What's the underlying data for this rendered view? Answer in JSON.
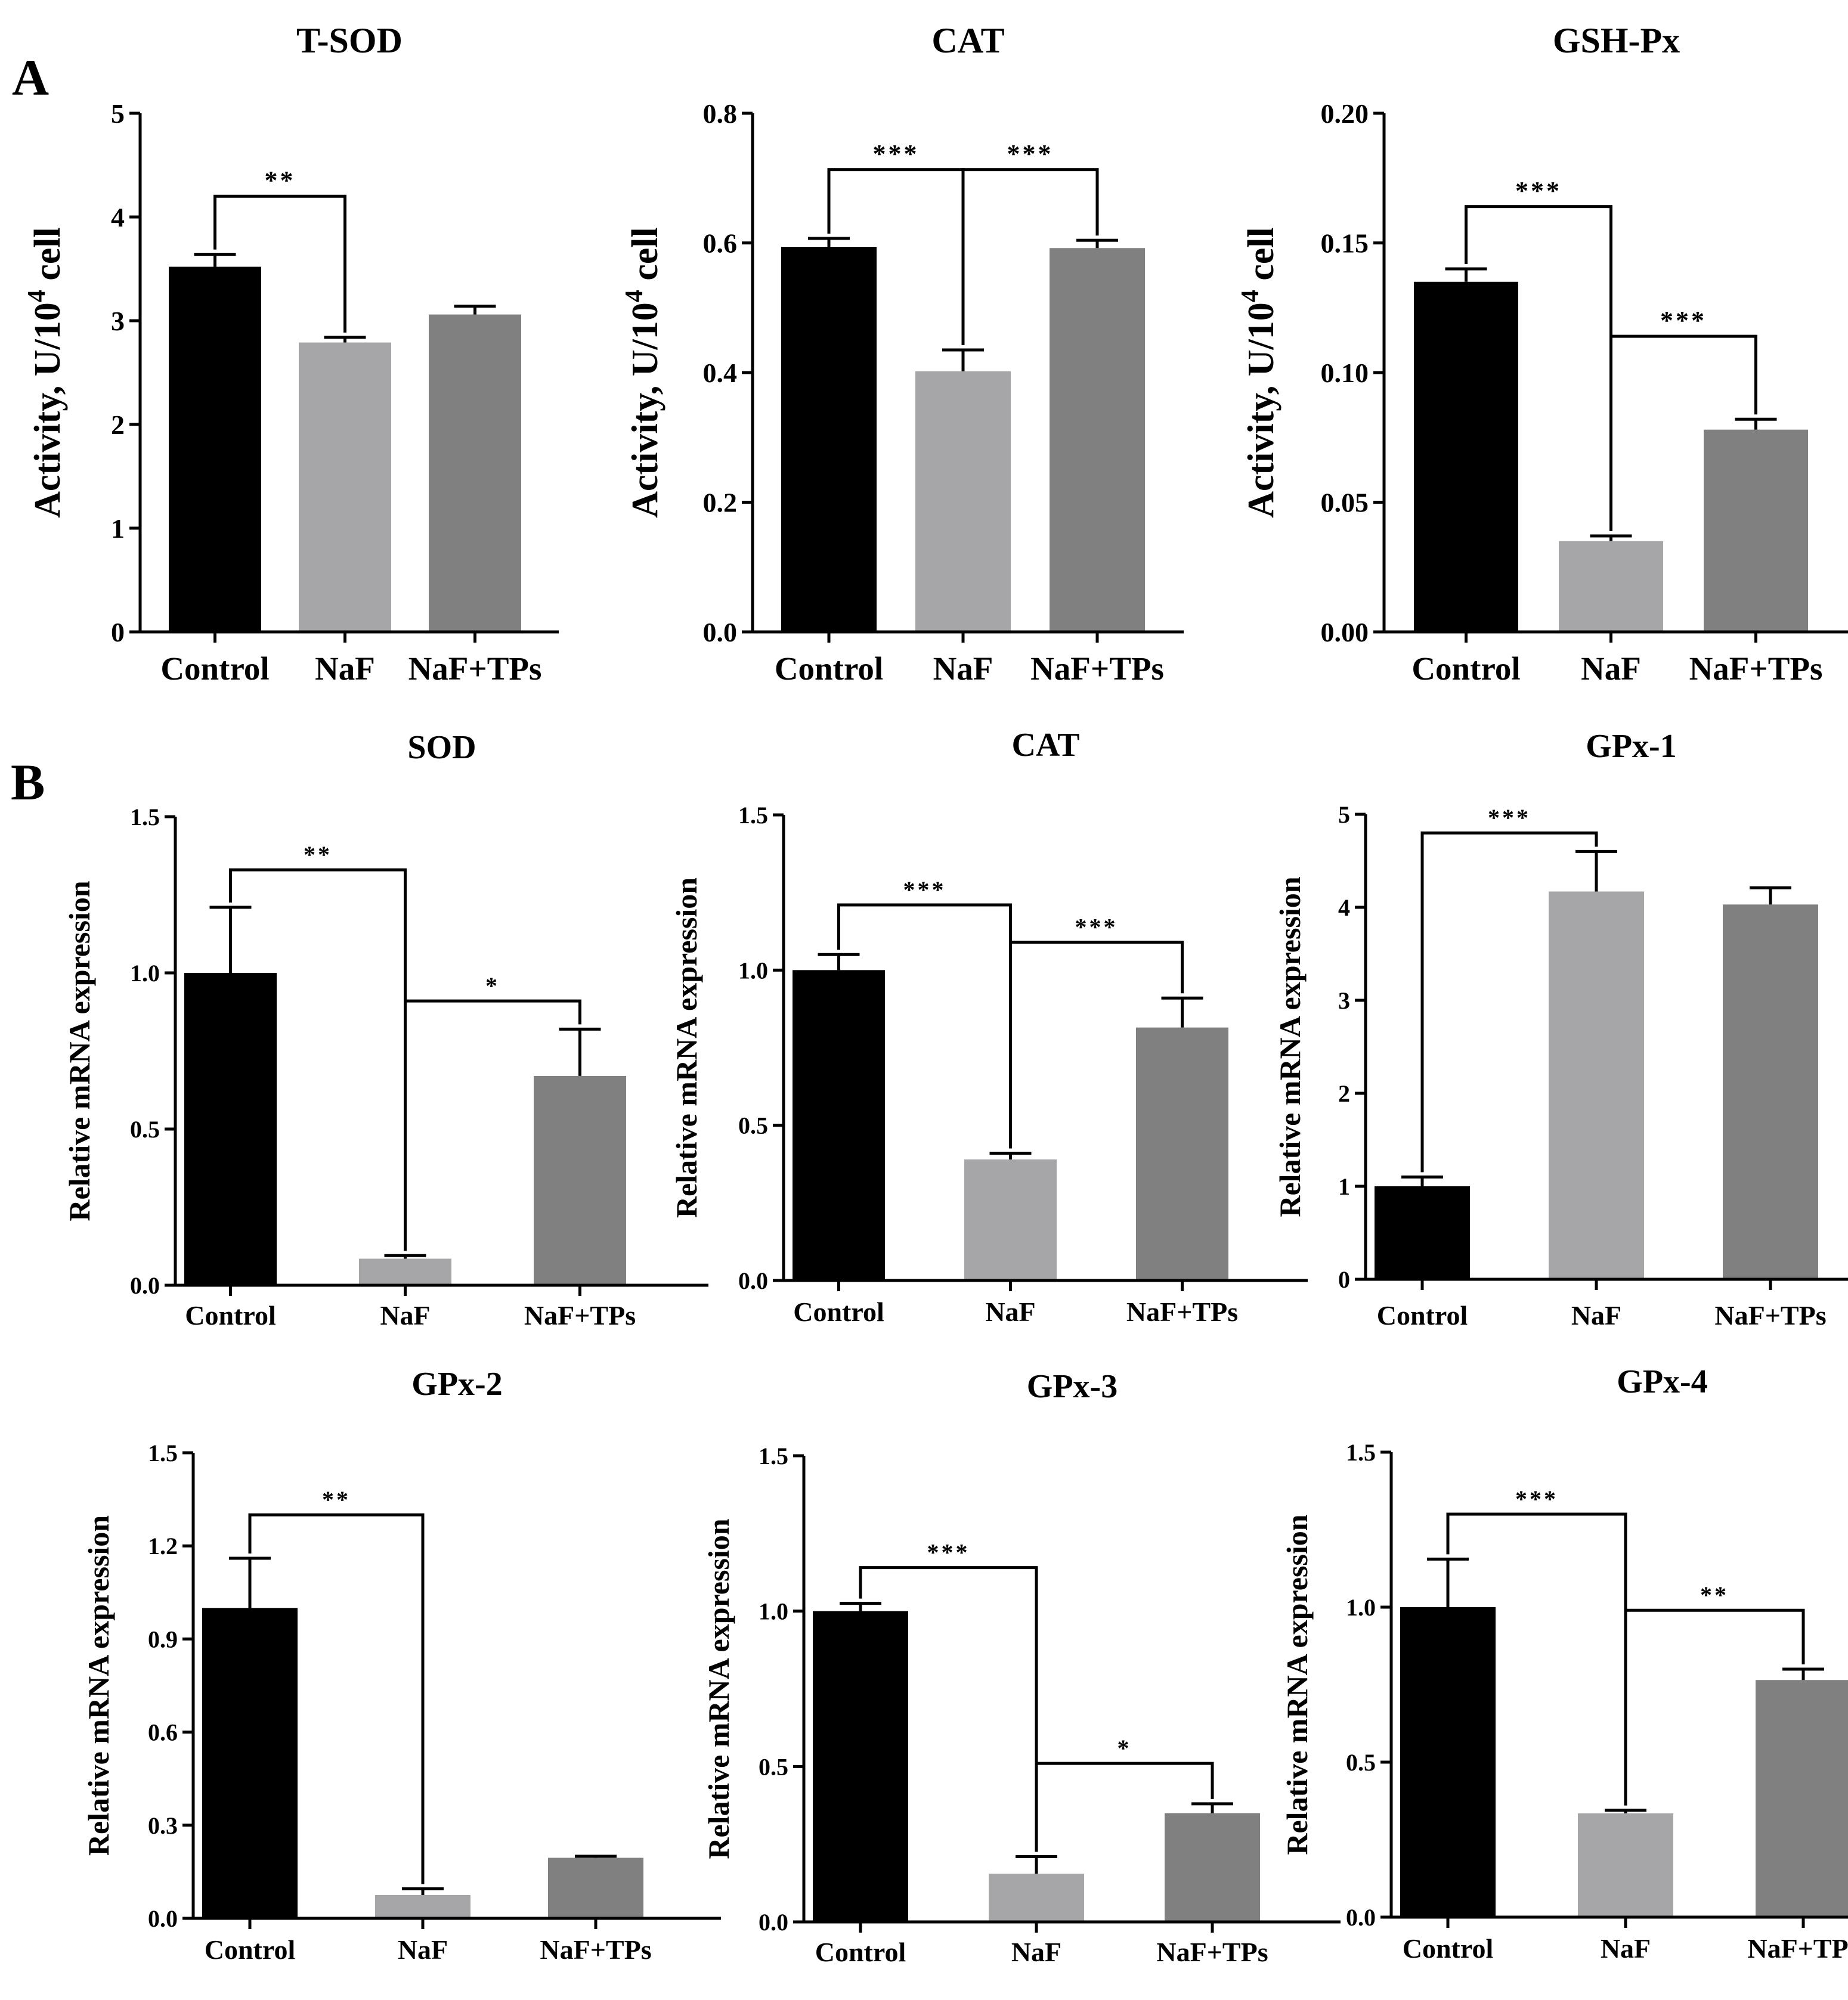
{
  "panels": [
    {
      "letter": "A"
    },
    {
      "letter": "B"
    }
  ],
  "colors": {
    "Control": "#000000",
    "NaF": "#a6a6a8",
    "NaF+TPs": "#808080",
    "axis": "#000000"
  },
  "chart_data": [
    {
      "type": "bar",
      "title": "T-SOD",
      "xlabel": "",
      "ylabel": "Activity, U/10^4 cell",
      "ylabel_parts": {
        "base": "Activity, U/10",
        "sup": "4",
        "tail": " cell"
      },
      "categories": [
        "Control",
        "NaF",
        "NaF+TPs"
      ],
      "values": [
        3.52,
        2.79,
        3.06
      ],
      "errors": [
        0.12,
        0.05,
        0.08
      ],
      "ylim": [
        0,
        5
      ],
      "ticks": [
        0,
        1,
        2,
        3,
        4,
        5
      ],
      "tick_labels": [
        "0",
        "1",
        "2",
        "3",
        "4",
        "5"
      ],
      "significance": [
        {
          "from": 0,
          "to": 1,
          "label": "**",
          "y": 4.2
        }
      ]
    },
    {
      "type": "bar",
      "title": "CAT",
      "xlabel": "",
      "ylabel": "Activity, U/10^4 cell",
      "ylabel_parts": {
        "base": "Activity, U/10",
        "sup": "4",
        "tail": " cell"
      },
      "categories": [
        "Control",
        "NaF",
        "NaF+TPs"
      ],
      "values": [
        0.594,
        0.402,
        0.592
      ],
      "errors": [
        0.013,
        0.033,
        0.012
      ],
      "ylim": [
        0,
        0.8
      ],
      "ticks": [
        0,
        0.2,
        0.4,
        0.6,
        0.8
      ],
      "tick_labels": [
        "0.0",
        "0.2",
        "0.4",
        "0.6",
        "0.8"
      ],
      "significance": [
        {
          "from": 0,
          "to": 1,
          "label": "***",
          "y": 0.713
        },
        {
          "from": 1,
          "to": 2,
          "label": "***",
          "y": 0.713
        }
      ]
    },
    {
      "type": "bar",
      "title": "GSH-Px",
      "xlabel": "",
      "ylabel": "Activity, U/10^4 cell",
      "ylabel_parts": {
        "base": "Activity, U/10",
        "sup": "4",
        "tail": " cell"
      },
      "categories": [
        "Control",
        "NaF",
        "NaF+TPs"
      ],
      "values": [
        0.135,
        0.035,
        0.078
      ],
      "errors": [
        0.005,
        0.002,
        0.004
      ],
      "ylim": [
        0,
        0.2
      ],
      "ticks": [
        0,
        0.05,
        0.1,
        0.15,
        0.2
      ],
      "tick_labels": [
        "0.00",
        "0.05",
        "0.10",
        "0.15",
        "0.20"
      ],
      "significance": [
        {
          "from": 0,
          "to": 1,
          "label": "***",
          "y": 0.164
        },
        {
          "from": 1,
          "to": 2,
          "label": "***",
          "y": 0.114
        }
      ]
    },
    {
      "type": "bar",
      "title": "SOD",
      "xlabel": "",
      "ylabel": "Relative mRNA expression",
      "categories": [
        "Control",
        "NaF",
        "NaF+TPs"
      ],
      "values": [
        1.0,
        0.085,
        0.67
      ],
      "errors": [
        0.21,
        0.01,
        0.15
      ],
      "ylim": [
        0,
        1.5
      ],
      "ticks": [
        0,
        0.5,
        1.0,
        1.5
      ],
      "tick_labels": [
        "0.0",
        "0.5",
        "1.0",
        "1.5"
      ],
      "significance": [
        {
          "from": 0,
          "to": 1,
          "label": "**",
          "y": 1.33
        },
        {
          "from": 1,
          "to": 2,
          "label": "*",
          "y": 0.91
        }
      ]
    },
    {
      "type": "bar",
      "title": "CAT",
      "xlabel": "",
      "ylabel": "Relative mRNA expression",
      "categories": [
        "Control",
        "NaF",
        "NaF+TPs"
      ],
      "values": [
        1.0,
        0.39,
        0.815
      ],
      "errors": [
        0.05,
        0.02,
        0.095
      ],
      "ylim": [
        0,
        1.5
      ],
      "ticks": [
        0,
        0.5,
        1.0,
        1.5
      ],
      "tick_labels": [
        "0.0",
        "0.5",
        "1.0",
        "1.5"
      ],
      "significance": [
        {
          "from": 0,
          "to": 1,
          "label": "***",
          "y": 1.21
        },
        {
          "from": 1,
          "to": 2,
          "label": "***",
          "y": 1.09
        }
      ]
    },
    {
      "type": "bar",
      "title": "GPx-1",
      "xlabel": "",
      "ylabel": "Relative mRNA expression",
      "categories": [
        "Control",
        "NaF",
        "NaF+TPs"
      ],
      "values": [
        1.0,
        4.17,
        4.03
      ],
      "errors": [
        0.1,
        0.43,
        0.18
      ],
      "ylim": [
        0,
        5
      ],
      "ticks": [
        0,
        1,
        2,
        3,
        4,
        5
      ],
      "tick_labels": [
        "0",
        "1",
        "2",
        "3",
        "4",
        "5"
      ],
      "significance": [
        {
          "from": 0,
          "to": 1,
          "label": "***",
          "y": 4.8
        }
      ]
    },
    {
      "type": "bar",
      "title": "GPx-2",
      "xlabel": "",
      "ylabel": "Relative mRNA expression",
      "categories": [
        "Control",
        "NaF",
        "NaF+TPs"
      ],
      "values": [
        1.0,
        0.075,
        0.195
      ],
      "errors": [
        0.16,
        0.02,
        0.005
      ],
      "ylim": [
        0,
        1.5
      ],
      "ticks": [
        0,
        0.3,
        0.6,
        0.9,
        1.2,
        1.5
      ],
      "tick_labels": [
        "0.0",
        "0.3",
        "0.6",
        "0.9",
        "1.2",
        "1.5"
      ],
      "significance": [
        {
          "from": 0,
          "to": 1,
          "label": "**",
          "y": 1.3
        }
      ]
    },
    {
      "type": "bar",
      "title": "GPx-3",
      "xlabel": "",
      "ylabel": "Relative mRNA expression",
      "categories": [
        "Control",
        "NaF",
        "NaF+TPs"
      ],
      "values": [
        1.0,
        0.155,
        0.35
      ],
      "errors": [
        0.025,
        0.055,
        0.03
      ],
      "ylim": [
        0,
        1.5
      ],
      "ticks": [
        0,
        0.5,
        1.0,
        1.5
      ],
      "tick_labels": [
        "0.0",
        "0.5",
        "1.0",
        "1.5"
      ],
      "significance": [
        {
          "from": 0,
          "to": 1,
          "label": "***",
          "y": 1.14
        },
        {
          "from": 1,
          "to": 2,
          "label": "*",
          "y": 0.51
        }
      ]
    },
    {
      "type": "bar",
      "title": "GPx-4",
      "xlabel": "",
      "ylabel": "Relative mRNA expression",
      "categories": [
        "Control",
        "NaF",
        "NaF+TPs"
      ],
      "values": [
        1.0,
        0.335,
        0.765
      ],
      "errors": [
        0.155,
        0.01,
        0.035
      ],
      "ylim": [
        0,
        1.5
      ],
      "ticks": [
        0,
        0.5,
        1.0,
        1.5
      ],
      "tick_labels": [
        "0.0",
        "0.5",
        "1.0",
        "1.5"
      ],
      "significance": [
        {
          "from": 0,
          "to": 1,
          "label": "***",
          "y": 1.3
        },
        {
          "from": 1,
          "to": 2,
          "label": "**",
          "y": 0.99
        }
      ]
    }
  ]
}
